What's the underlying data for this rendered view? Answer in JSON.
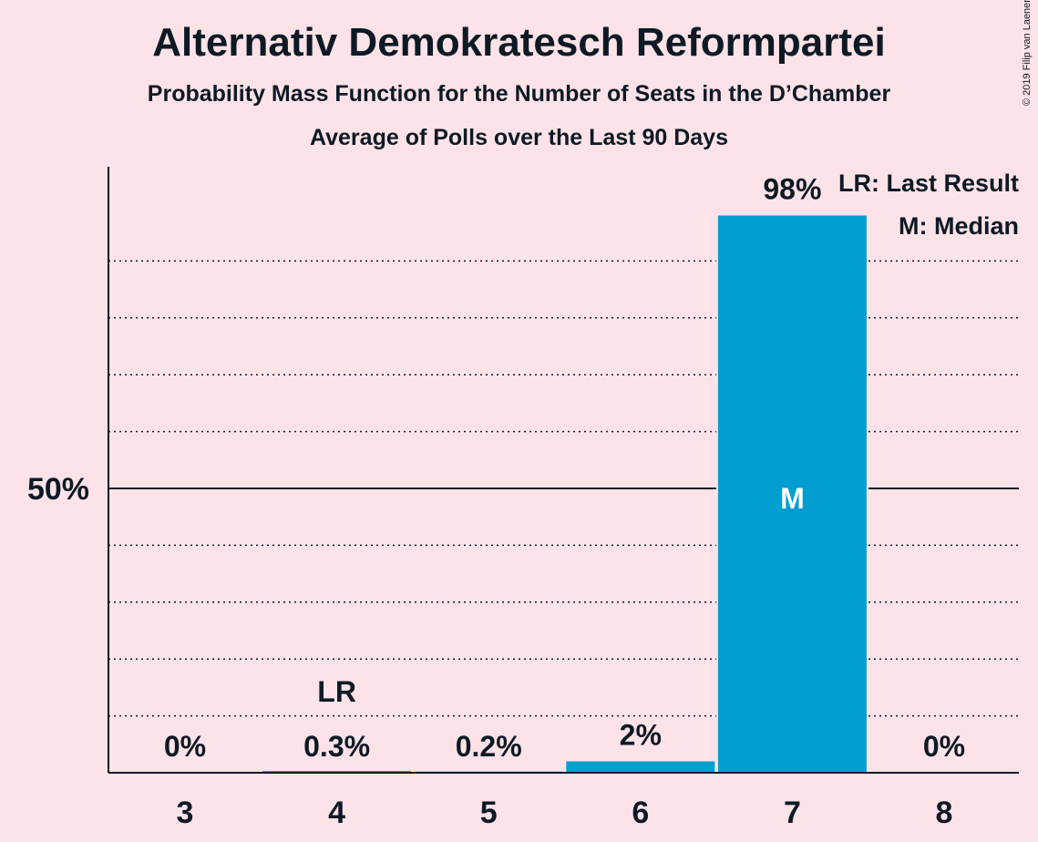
{
  "title": "Alternativ Demokratesch Reformpartei",
  "subtitle": "Probability Mass Function for the Number of Seats in the D’Chamber",
  "subtitle2": "Average of Polls over the Last 90 Days",
  "copyright": "© 2019 Filip van Laenen",
  "chart_data": {
    "type": "bar",
    "categories": [
      "3",
      "4",
      "5",
      "6",
      "7",
      "8"
    ],
    "values": [
      0,
      0.3,
      0.2,
      2,
      98,
      0
    ],
    "value_labels": [
      "0%",
      "0.3%",
      "0.2%",
      "2%",
      "98%",
      "0%"
    ],
    "ylim": [
      0,
      100
    ],
    "y_tick_label": "50%",
    "y_tick_value": 50,
    "last_result_category": "4",
    "last_result_marker": "LR",
    "median_category": "7",
    "median_marker": "M",
    "legend": [
      "LR: Last Result",
      "M: Median"
    ],
    "legend_position": "top-right",
    "bar_color": "#009fd0",
    "grid": true
  }
}
